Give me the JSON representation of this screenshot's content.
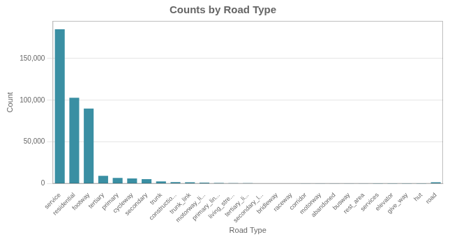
{
  "chart_data": {
    "type": "bar",
    "title": "Counts by Road Type",
    "xlabel": "Road Type",
    "ylabel": "Count",
    "categories": [
      "service",
      "residential",
      "footway",
      "tertiary",
      "primary",
      "cycleway",
      "secondary",
      "trunk",
      "constructio...",
      "trunk_link",
      "motorway_li...",
      "primary_lin...",
      "living_stre...",
      "tertiary_li...",
      "secondary_l...",
      "bridleway",
      "raceway",
      "corridor",
      "motorway",
      "abandoned",
      "busway",
      "rest_area",
      "services",
      "elevator",
      "give_way",
      "hut",
      "road"
    ],
    "values": [
      185000,
      103000,
      90000,
      9500,
      7000,
      6200,
      5500,
      2800,
      2000,
      1800,
      1200,
      900,
      700,
      600,
      500,
      400,
      350,
      300,
      250,
      200,
      180,
      160,
      140,
      120,
      100,
      80,
      1800
    ],
    "color": "#3a8fa3",
    "ylim": [
      0,
      195000
    ],
    "yticks": [
      0,
      {
        "value": 50000,
        "label": "50,000"
      },
      {
        "value": 100000,
        "label": "100,000"
      },
      {
        "value": 150000,
        "label": "150,000"
      }
    ],
    "grid": true
  }
}
